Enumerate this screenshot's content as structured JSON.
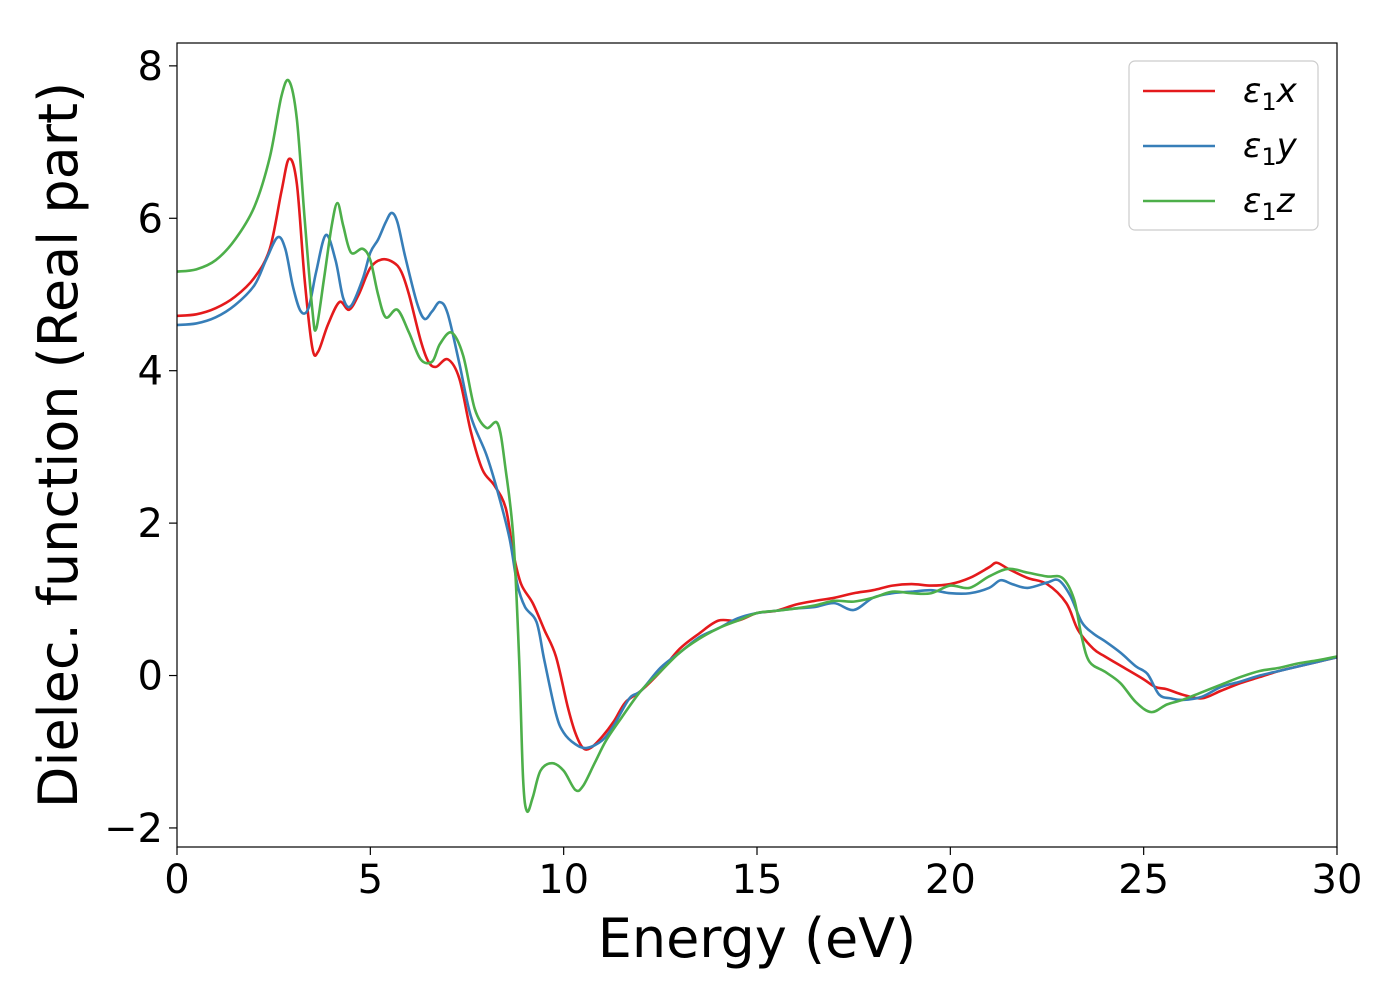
{
  "chart_data": {
    "type": "line",
    "title": "",
    "xlabel": "Energy (eV)",
    "ylabel": "Dielec. function (Real part)",
    "xlim": [
      0,
      30
    ],
    "ylim": [
      -2.25,
      8.3
    ],
    "xticks": [
      0,
      5,
      10,
      15,
      20,
      25,
      30
    ],
    "xtick_labels": [
      "0",
      "5",
      "10",
      "15",
      "20",
      "25",
      "30"
    ],
    "yticks": [
      -2,
      0,
      2,
      4,
      6,
      8
    ],
    "ytick_labels": [
      "−2",
      "0",
      "2",
      "4",
      "6",
      "8"
    ],
    "grid": false,
    "legend_position": "top-right",
    "series": [
      {
        "name_symbol": "ε",
        "name_sub": "1",
        "name_suffix": "x",
        "color": "#e41a1c",
        "points": [
          [
            0,
            4.72
          ],
          [
            0.5,
            4.74
          ],
          [
            1.0,
            4.82
          ],
          [
            1.5,
            4.97
          ],
          [
            2.0,
            5.22
          ],
          [
            2.4,
            5.6
          ],
          [
            2.7,
            6.35
          ],
          [
            2.9,
            6.78
          ],
          [
            3.1,
            6.45
          ],
          [
            3.3,
            5.2
          ],
          [
            3.5,
            4.3
          ],
          [
            3.65,
            4.25
          ],
          [
            3.9,
            4.6
          ],
          [
            4.2,
            4.9
          ],
          [
            4.45,
            4.8
          ],
          [
            4.7,
            5.0
          ],
          [
            5.0,
            5.35
          ],
          [
            5.3,
            5.46
          ],
          [
            5.6,
            5.42
          ],
          [
            5.8,
            5.3
          ],
          [
            6.0,
            5.0
          ],
          [
            6.3,
            4.4
          ],
          [
            6.5,
            4.12
          ],
          [
            6.7,
            4.05
          ],
          [
            7.0,
            4.15
          ],
          [
            7.3,
            3.9
          ],
          [
            7.6,
            3.2
          ],
          [
            7.9,
            2.7
          ],
          [
            8.2,
            2.5
          ],
          [
            8.5,
            2.2
          ],
          [
            8.7,
            1.6
          ],
          [
            8.9,
            1.2
          ],
          [
            9.2,
            0.95
          ],
          [
            9.5,
            0.6
          ],
          [
            9.8,
            0.25
          ],
          [
            10.1,
            -0.4
          ],
          [
            10.3,
            -0.75
          ],
          [
            10.5,
            -0.95
          ],
          [
            10.7,
            -0.95
          ],
          [
            11.0,
            -0.8
          ],
          [
            11.3,
            -0.6
          ],
          [
            11.6,
            -0.35
          ],
          [
            12.0,
            -0.2
          ],
          [
            12.5,
            0.05
          ],
          [
            13.0,
            0.35
          ],
          [
            13.5,
            0.55
          ],
          [
            14.0,
            0.72
          ],
          [
            14.5,
            0.72
          ],
          [
            15.0,
            0.82
          ],
          [
            15.5,
            0.85
          ],
          [
            16.0,
            0.93
          ],
          [
            16.5,
            0.98
          ],
          [
            17.0,
            1.02
          ],
          [
            17.5,
            1.08
          ],
          [
            18.0,
            1.12
          ],
          [
            18.5,
            1.18
          ],
          [
            19.0,
            1.2
          ],
          [
            19.5,
            1.18
          ],
          [
            20.0,
            1.2
          ],
          [
            20.5,
            1.28
          ],
          [
            21.0,
            1.42
          ],
          [
            21.2,
            1.48
          ],
          [
            21.5,
            1.4
          ],
          [
            22.0,
            1.28
          ],
          [
            22.5,
            1.2
          ],
          [
            23.0,
            0.95
          ],
          [
            23.3,
            0.6
          ],
          [
            23.7,
            0.35
          ],
          [
            24.0,
            0.25
          ],
          [
            24.5,
            0.1
          ],
          [
            25.0,
            -0.05
          ],
          [
            25.3,
            -0.15
          ],
          [
            25.6,
            -0.18
          ],
          [
            26.0,
            -0.25
          ],
          [
            26.5,
            -0.3
          ],
          [
            27.0,
            -0.2
          ],
          [
            27.5,
            -0.1
          ],
          [
            28.0,
            -0.02
          ],
          [
            28.5,
            0.06
          ],
          [
            29.0,
            0.12
          ],
          [
            29.5,
            0.18
          ],
          [
            30.0,
            0.24
          ]
        ]
      },
      {
        "name_symbol": "ε",
        "name_sub": "1",
        "name_suffix": "y",
        "color": "#377eb8",
        "points": [
          [
            0,
            4.6
          ],
          [
            0.5,
            4.62
          ],
          [
            1.0,
            4.7
          ],
          [
            1.5,
            4.86
          ],
          [
            2.0,
            5.12
          ],
          [
            2.3,
            5.45
          ],
          [
            2.6,
            5.75
          ],
          [
            2.8,
            5.6
          ],
          [
            3.0,
            5.1
          ],
          [
            3.2,
            4.78
          ],
          [
            3.4,
            4.82
          ],
          [
            3.6,
            5.3
          ],
          [
            3.85,
            5.78
          ],
          [
            4.1,
            5.45
          ],
          [
            4.3,
            4.95
          ],
          [
            4.5,
            4.85
          ],
          [
            4.8,
            5.2
          ],
          [
            5.0,
            5.55
          ],
          [
            5.2,
            5.72
          ],
          [
            5.4,
            5.95
          ],
          [
            5.55,
            6.07
          ],
          [
            5.7,
            5.95
          ],
          [
            5.9,
            5.5
          ],
          [
            6.2,
            4.9
          ],
          [
            6.4,
            4.68
          ],
          [
            6.6,
            4.78
          ],
          [
            6.8,
            4.9
          ],
          [
            7.0,
            4.75
          ],
          [
            7.3,
            4.1
          ],
          [
            7.6,
            3.4
          ],
          [
            8.0,
            2.9
          ],
          [
            8.3,
            2.4
          ],
          [
            8.6,
            1.8
          ],
          [
            8.8,
            1.2
          ],
          [
            9.0,
            0.9
          ],
          [
            9.3,
            0.7
          ],
          [
            9.5,
            0.2
          ],
          [
            9.8,
            -0.5
          ],
          [
            10.0,
            -0.75
          ],
          [
            10.3,
            -0.9
          ],
          [
            10.6,
            -0.95
          ],
          [
            11.0,
            -0.85
          ],
          [
            11.3,
            -0.65
          ],
          [
            11.7,
            -0.3
          ],
          [
            12.0,
            -0.2
          ],
          [
            12.5,
            0.1
          ],
          [
            13.0,
            0.3
          ],
          [
            13.5,
            0.5
          ],
          [
            14.0,
            0.62
          ],
          [
            14.5,
            0.75
          ],
          [
            15.0,
            0.82
          ],
          [
            15.5,
            0.85
          ],
          [
            16.0,
            0.88
          ],
          [
            16.5,
            0.9
          ],
          [
            17.0,
            0.95
          ],
          [
            17.5,
            0.86
          ],
          [
            18.0,
            1.02
          ],
          [
            18.5,
            1.08
          ],
          [
            19.0,
            1.1
          ],
          [
            19.5,
            1.12
          ],
          [
            20.0,
            1.08
          ],
          [
            20.5,
            1.08
          ],
          [
            21.0,
            1.15
          ],
          [
            21.3,
            1.25
          ],
          [
            21.6,
            1.2
          ],
          [
            22.0,
            1.15
          ],
          [
            22.5,
            1.22
          ],
          [
            22.8,
            1.25
          ],
          [
            23.1,
            1.05
          ],
          [
            23.4,
            0.7
          ],
          [
            23.7,
            0.55
          ],
          [
            24.0,
            0.45
          ],
          [
            24.4,
            0.3
          ],
          [
            24.8,
            0.12
          ],
          [
            25.1,
            0.02
          ],
          [
            25.4,
            -0.25
          ],
          [
            25.7,
            -0.3
          ],
          [
            26.0,
            -0.32
          ],
          [
            26.5,
            -0.28
          ],
          [
            27.0,
            -0.15
          ],
          [
            27.5,
            -0.08
          ],
          [
            28.0,
            0.0
          ],
          [
            28.5,
            0.06
          ],
          [
            29.0,
            0.12
          ],
          [
            29.5,
            0.18
          ],
          [
            30.0,
            0.24
          ]
        ]
      },
      {
        "name_symbol": "ε",
        "name_sub": "1",
        "name_suffix": "z",
        "color": "#4daf4a",
        "points": [
          [
            0,
            5.3
          ],
          [
            0.5,
            5.33
          ],
          [
            1.0,
            5.45
          ],
          [
            1.5,
            5.72
          ],
          [
            2.0,
            6.15
          ],
          [
            2.4,
            6.8
          ],
          [
            2.7,
            7.6
          ],
          [
            2.9,
            7.8
          ],
          [
            3.1,
            7.3
          ],
          [
            3.3,
            6.0
          ],
          [
            3.5,
            4.8
          ],
          [
            3.6,
            4.55
          ],
          [
            3.8,
            5.2
          ],
          [
            4.0,
            5.9
          ],
          [
            4.15,
            6.2
          ],
          [
            4.3,
            5.9
          ],
          [
            4.5,
            5.55
          ],
          [
            4.8,
            5.6
          ],
          [
            5.0,
            5.45
          ],
          [
            5.2,
            5.0
          ],
          [
            5.4,
            4.7
          ],
          [
            5.7,
            4.8
          ],
          [
            6.0,
            4.5
          ],
          [
            6.3,
            4.15
          ],
          [
            6.6,
            4.12
          ],
          [
            6.8,
            4.35
          ],
          [
            7.1,
            4.5
          ],
          [
            7.4,
            4.2
          ],
          [
            7.7,
            3.5
          ],
          [
            8.0,
            3.25
          ],
          [
            8.3,
            3.3
          ],
          [
            8.5,
            2.7
          ],
          [
            8.7,
            1.8
          ],
          [
            8.85,
            0.2
          ],
          [
            8.95,
            -1.35
          ],
          [
            9.05,
            -1.78
          ],
          [
            9.2,
            -1.6
          ],
          [
            9.4,
            -1.25
          ],
          [
            9.7,
            -1.15
          ],
          [
            10.0,
            -1.25
          ],
          [
            10.3,
            -1.5
          ],
          [
            10.5,
            -1.45
          ],
          [
            10.8,
            -1.15
          ],
          [
            11.1,
            -0.85
          ],
          [
            11.5,
            -0.55
          ],
          [
            12.0,
            -0.2
          ],
          [
            12.5,
            0.05
          ],
          [
            13.0,
            0.3
          ],
          [
            13.5,
            0.48
          ],
          [
            14.0,
            0.62
          ],
          [
            14.5,
            0.72
          ],
          [
            15.0,
            0.82
          ],
          [
            15.5,
            0.85
          ],
          [
            16.0,
            0.88
          ],
          [
            16.5,
            0.92
          ],
          [
            17.0,
            0.98
          ],
          [
            17.5,
            0.97
          ],
          [
            18.0,
            1.02
          ],
          [
            18.5,
            1.1
          ],
          [
            19.0,
            1.08
          ],
          [
            19.5,
            1.08
          ],
          [
            20.0,
            1.18
          ],
          [
            20.5,
            1.15
          ],
          [
            21.0,
            1.3
          ],
          [
            21.5,
            1.4
          ],
          [
            22.0,
            1.35
          ],
          [
            22.5,
            1.3
          ],
          [
            22.9,
            1.28
          ],
          [
            23.2,
            1.0
          ],
          [
            23.4,
            0.5
          ],
          [
            23.6,
            0.18
          ],
          [
            24.0,
            0.05
          ],
          [
            24.4,
            -0.1
          ],
          [
            24.8,
            -0.35
          ],
          [
            25.2,
            -0.48
          ],
          [
            25.6,
            -0.38
          ],
          [
            26.0,
            -0.32
          ],
          [
            26.5,
            -0.22
          ],
          [
            27.0,
            -0.12
          ],
          [
            27.5,
            -0.02
          ],
          [
            28.0,
            0.06
          ],
          [
            28.5,
            0.1
          ],
          [
            29.0,
            0.16
          ],
          [
            29.5,
            0.2
          ],
          [
            30.0,
            0.25
          ]
        ]
      }
    ]
  }
}
